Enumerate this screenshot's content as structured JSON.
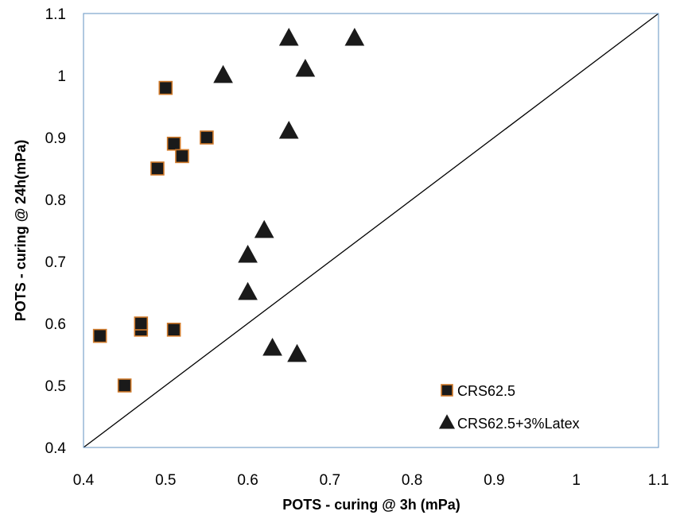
{
  "chart_data": {
    "type": "scatter",
    "title": "",
    "xlabel": "POTS - curing @ 3h (mPa)",
    "ylabel": "POTS - curing @ 24h(mPa)",
    "xlim": [
      0.4,
      1.1
    ],
    "ylim": [
      0.4,
      1.1
    ],
    "x_ticks": [
      "0.4",
      "0.5",
      "0.6",
      "0.7",
      "0.8",
      "0.9",
      "1",
      "1.1"
    ],
    "y_ticks": [
      "0.4",
      "0.5",
      "0.6",
      "0.7",
      "0.8",
      "0.9",
      "1",
      "1.1"
    ],
    "grid": false,
    "legend_position": "bottom-right",
    "reference_line": {
      "from": [
        0.4,
        0.4
      ],
      "to": [
        1.1,
        1.1
      ],
      "color": "#000000"
    },
    "series": [
      {
        "name": "CRS62.5",
        "marker": "square",
        "fill": "#1a1a1a",
        "edge": "#d07a2a",
        "points": [
          [
            0.42,
            0.58
          ],
          [
            0.45,
            0.5
          ],
          [
            0.47,
            0.59
          ],
          [
            0.47,
            0.6
          ],
          [
            0.49,
            0.85
          ],
          [
            0.5,
            0.98
          ],
          [
            0.51,
            0.89
          ],
          [
            0.51,
            0.59
          ],
          [
            0.52,
            0.87
          ],
          [
            0.55,
            0.9
          ]
        ]
      },
      {
        "name": "CRS62.5+3%Latex",
        "marker": "triangle",
        "fill": "#1a1a1a",
        "edge": "#1a1a1a",
        "points": [
          [
            0.57,
            1.0
          ],
          [
            0.6,
            0.71
          ],
          [
            0.6,
            0.65
          ],
          [
            0.62,
            0.75
          ],
          [
            0.63,
            0.56
          ],
          [
            0.65,
            1.06
          ],
          [
            0.65,
            0.91
          ],
          [
            0.66,
            0.55
          ],
          [
            0.67,
            1.01
          ],
          [
            0.73,
            1.06
          ]
        ]
      }
    ],
    "plot_border_color": "#7ba4cc"
  }
}
